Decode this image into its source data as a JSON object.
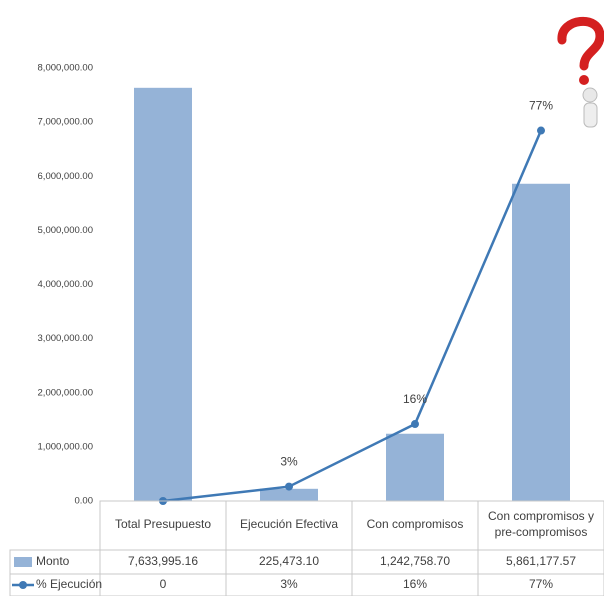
{
  "chart_data": {
    "type": "bar",
    "categories": [
      "Total Presupuesto",
      "Ejecución Efectiva",
      "Con compromisos",
      "Con compromisos y pre-compromisos"
    ],
    "series": [
      {
        "name": "Monto",
        "type": "bar",
        "color": "#95b3d7",
        "values": [
          7633995.16,
          225473.1,
          1242758.7,
          5861177.57
        ],
        "value_labels": [
          "7,633,995.16",
          "225,473.10",
          "1,242,758.70",
          "5,861,177.57"
        ]
      },
      {
        "name": "% Ejecución",
        "type": "line",
        "axis": "y2",
        "color": "#3f79b5",
        "values": [
          0,
          3,
          16,
          77
        ],
        "value_labels": [
          "0",
          "3%",
          "16%",
          "77%"
        ]
      }
    ],
    "ylim": [
      0,
      8000000
    ],
    "yticks": [
      {
        "value": 0,
        "label": "0.00"
      },
      {
        "value": 1000000,
        "label": "1,000,000.00"
      },
      {
        "value": 2000000,
        "label": "2,000,000.00"
      },
      {
        "value": 3000000,
        "label": "3,000,000.00"
      },
      {
        "value": 4000000,
        "label": "4,000,000.00"
      },
      {
        "value": 5000000,
        "label": "5,000,000.00"
      },
      {
        "value": 6000000,
        "label": "6,000,000.00"
      },
      {
        "value": 7000000,
        "label": "7,000,000.00"
      },
      {
        "value": 8000000,
        "label": "8,000,000.00"
      }
    ],
    "y2lim": [
      0,
      90
    ],
    "grid": false,
    "data_table": true
  }
}
